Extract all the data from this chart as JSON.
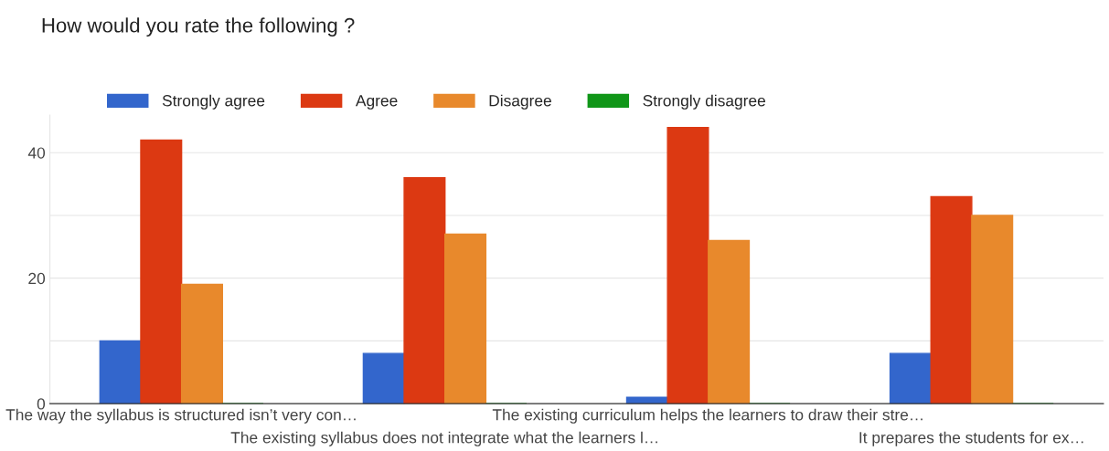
{
  "chart_data": {
    "type": "bar",
    "title": "How would you rate the following ?",
    "categories": [
      "The way the syllabus is structured isn’t very con…",
      "The existing syllabus does not integrate what the learners l…",
      "The existing curriculum helps the learners to draw their stre…",
      "It prepares the students for ex…"
    ],
    "series": [
      {
        "name": "Strongly agree",
        "color": "#3366cc",
        "values": [
          10,
          8,
          1,
          8
        ]
      },
      {
        "name": "Agree",
        "color": "#dc3912",
        "values": [
          42,
          36,
          44,
          33
        ]
      },
      {
        "name": "Disagree",
        "color": "#e8892c",
        "values": [
          19,
          27,
          26,
          30
        ]
      },
      {
        "name": "Strongly disagree",
        "color": "#109618",
        "values": [
          0,
          0,
          0,
          0
        ]
      }
    ],
    "ylim": [
      0,
      46
    ],
    "yticks": [
      0,
      {
        "value": 10,
        "label": null
      },
      20,
      {
        "value": 30,
        "label": null
      },
      40
    ],
    "grid": "y",
    "legend": "top left"
  }
}
